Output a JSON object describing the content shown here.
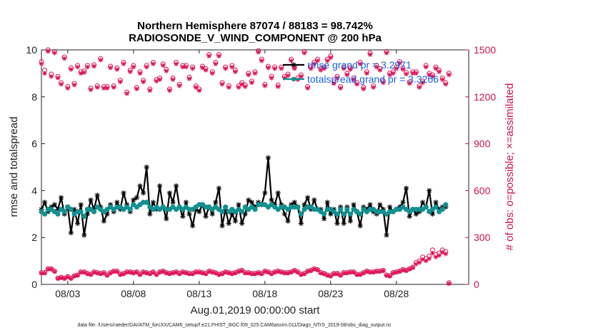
{
  "chart_data": {
    "type": "line",
    "title_line1": "Northern Hemisphere 87074 / 88183 = 98.742%",
    "title_line2": "RADIOSONDE_V_WIND_COMPONENT @ 200 hPa",
    "xlabel": "Aug.01,2019 00:00:00 start",
    "ylabel": "rmse and totalspread",
    "ylabel_right": "# of obs: o=possible; ×=assimilated",
    "footnote": "data file: /Users/raeder/DAI/ATM_forcXX/CAM6_setup/f.e21.FHIST_BGC.f09_025.CAM6assim.011/Diags_NTrS_2019-08/obs_diag_output.nc",
    "xlim": [
      1,
      33.5
    ],
    "ylim": [
      0,
      10
    ],
    "ylim_right": [
      0,
      1500
    ],
    "x_ticks": [
      {
        "x": 3,
        "label": "08/03"
      },
      {
        "x": 8,
        "label": "08/08"
      },
      {
        "x": 13,
        "label": "08/13"
      },
      {
        "x": 18,
        "label": "08/18"
      },
      {
        "x": 23,
        "label": "08/23"
      },
      {
        "x": 28,
        "label": "08/28"
      }
    ],
    "y_ticks": [
      0,
      2,
      4,
      6,
      8,
      10
    ],
    "y_ticks_right": [
      0,
      300,
      600,
      900,
      1200,
      1500
    ],
    "x_start": 1,
    "x_step": 0.25,
    "colors": {
      "rmse": "#000000",
      "spread": "#139090",
      "obs": "#dd1155",
      "legend_text": "#1a5fe0",
      "right_axis": "#cc1155"
    },
    "series": [
      {
        "name": "rmse grand pr = 3.2971",
        "axis": "left",
        "values": [
          3.2,
          3.5,
          3.1,
          3.3,
          3.4,
          3.2,
          3.7,
          3.0,
          3.3,
          2.2,
          3.2,
          2.6,
          3.4,
          2.1,
          3.0,
          3.6,
          3.2,
          3.8,
          3.3,
          2.7,
          3.0,
          3.4,
          3.1,
          3.5,
          3.2,
          3.9,
          3.4,
          3.1,
          3.6,
          3.7,
          4.2,
          3.9,
          5.0,
          3.0,
          3.5,
          3.2,
          4.2,
          3.3,
          2.8,
          3.9,
          3.5,
          4.2,
          3.3,
          2.9,
          3.5,
          3.0,
          2.5,
          3.2,
          3.1,
          3.4,
          2.9,
          3.3,
          3.0,
          3.5,
          4.1,
          2.5,
          3.2,
          2.6,
          3.0,
          2.7,
          3.4,
          2.6,
          3.0,
          3.6,
          3.5,
          3.3,
          3.5,
          3.4,
          3.9,
          5.4,
          3.6,
          3.4,
          3.9,
          3.4,
          3.0,
          2.7,
          3.4,
          3.5,
          3.3,
          2.6,
          3.4,
          3.7,
          3.2,
          3.6,
          3.2,
          3.2,
          2.8,
          3.5,
          3.0,
          3.2,
          2.6,
          3.3,
          2.6,
          3.3,
          2.7,
          3.4,
          3.1,
          2.5,
          3.3,
          3.2,
          3.4,
          3.1,
          3.0,
          3.4,
          3.2,
          2.1,
          3.3,
          3.1,
          3.2,
          3.3,
          3.5,
          4.1,
          2.9,
          3.2,
          3.0,
          3.1,
          3.5,
          3.3,
          4.0,
          3.0,
          3.5,
          3.2,
          3.3,
          3.3
        ],
        "style": "line-star"
      },
      {
        "name": "totalspread grand pr = 3.3266",
        "axis": "left",
        "values": [
          3.1,
          3.0,
          3.2,
          3.2,
          3.1,
          3.0,
          3.2,
          3.1,
          3.3,
          3.2,
          3.0,
          3.1,
          3.1,
          2.9,
          3.2,
          3.2,
          3.1,
          3.3,
          3.2,
          3.1,
          3.2,
          3.3,
          3.2,
          3.3,
          3.3,
          3.2,
          3.3,
          3.2,
          3.4,
          3.3,
          3.4,
          3.5,
          3.5,
          3.3,
          3.2,
          3.3,
          3.2,
          3.3,
          3.2,
          3.2,
          3.3,
          3.2,
          3.3,
          3.2,
          3.3,
          3.2,
          3.2,
          3.3,
          3.4,
          3.4,
          3.3,
          3.3,
          3.2,
          3.3,
          3.2,
          3.1,
          3.3,
          3.1,
          3.2,
          3.1,
          3.2,
          3.1,
          3.3,
          3.2,
          3.3,
          3.2,
          3.4,
          3.4,
          3.4,
          3.3,
          3.4,
          3.3,
          3.2,
          3.3,
          3.3,
          3.2,
          3.3,
          3.3,
          3.3,
          3.0,
          3.2,
          3.3,
          3.3,
          3.2,
          3.2,
          3.1,
          3.0,
          3.2,
          3.2,
          3.1,
          3.0,
          3.2,
          3.0,
          3.2,
          3.0,
          3.2,
          3.1,
          3.0,
          3.2,
          3.1,
          3.2,
          3.2,
          3.1,
          3.1,
          3.1,
          3.0,
          3.1,
          3.1,
          3.2,
          3.2,
          3.3,
          3.2,
          3.1,
          3.2,
          3.2,
          3.2,
          3.2,
          3.3,
          3.1,
          3.2,
          3.3,
          3.1,
          3.2,
          3.4
        ],
        "style": "line-circle"
      },
      {
        "name": "possible",
        "axis": "right",
        "values": [
          1425,
          1370,
          1500,
          1345,
          1490,
          1330,
          1290,
          1455,
          1265,
          1385,
          1285,
          1400,
          1360,
          1365,
          1400,
          1255,
          1405,
          1270,
          1445,
          1265,
          1265,
          1395,
          1270,
          1385,
          1305,
          1420,
          1230,
          1370,
          1400,
          1260,
          1360,
          1305,
          1400,
          1250,
          1420,
          1310,
          1320,
          1410,
          1375,
          1250,
          1320,
          1420,
          1280,
          1400,
          1400,
          1325,
          1390,
          1270,
          1250,
          1395,
          1380,
          1470,
          1360,
          1420,
          1470,
          1290,
          1390,
          1270,
          1400,
          1370,
          1270,
          1290,
          1275,
          1350,
          1300,
          1360,
          1495,
          1440,
          1280,
          1395,
          1330,
          1390,
          1275,
          1390,
          1330,
          1345,
          1440,
          1390,
          1320,
          1340,
          1490,
          1265,
          1390,
          1420,
          1440,
          1380,
          1390,
          1440,
          1460,
          1295,
          1330,
          1265,
          1390,
          1350,
          1385,
          1320,
          1290,
          1420,
          1260,
          1360,
          1480,
          1270,
          1400,
          1380,
          1300,
          1490,
          1350,
          1360,
          1390,
          1425,
          1385,
          1355,
          1295,
          1360,
          1360,
          1270,
          1300,
          1400,
          1350,
          1340,
          1390,
          1370,
          1320,
          1290,
          1350
        ],
        "style": "circle"
      },
      {
        "name": "assimilated",
        "axis": "right",
        "values": [
          1410,
          1350,
          1490,
          1330,
          1480,
          1320,
          1280,
          1445,
          1255,
          1375,
          1275,
          1390,
          1350,
          1355,
          1390,
          1245,
          1395,
          1260,
          1435,
          1255,
          1255,
          1385,
          1260,
          1375,
          1295,
          1410,
          1220,
          1360,
          1390,
          1250,
          1350,
          1295,
          1390,
          1240,
          1410,
          1300,
          1310,
          1400,
          1365,
          1240,
          1310,
          1410,
          1270,
          1390,
          1390,
          1315,
          1380,
          1260,
          1240,
          1385,
          1370,
          1460,
          1350,
          1410,
          1460,
          1280,
          1380,
          1260,
          1390,
          1360,
          1260,
          1280,
          1265,
          1340,
          1290,
          1350,
          1485,
          1430,
          1270,
          1385,
          1320,
          1380,
          1265,
          1380,
          1320,
          1335,
          1430,
          1380,
          1310,
          1330,
          1480,
          1255,
          1380,
          1410,
          1430,
          1370,
          1380,
          1430,
          1450,
          1285,
          1320,
          1255,
          1380,
          1340,
          1375,
          1310,
          1280,
          1410,
          1250,
          1350,
          1470,
          1260,
          1390,
          1370,
          1290,
          1480,
          1340,
          1350,
          1380,
          1415,
          1375,
          1345,
          1285,
          1350,
          1350,
          1260,
          1290,
          1390,
          1340,
          1330,
          1380,
          1360,
          1310,
          1280,
          1340
        ],
        "style": "star"
      },
      {
        "name": "possible_low",
        "axis": "right",
        "values": [
          75,
          75,
          100,
          100,
          85,
          40,
          45,
          40,
          50,
          40,
          55,
          60,
          80,
          80,
          70,
          65,
          80,
          75,
          70,
          75,
          60,
          75,
          85,
          85,
          65,
          70,
          80,
          80,
          75,
          80,
          65,
          80,
          75,
          70,
          80,
          65,
          80,
          85,
          75,
          70,
          75,
          80,
          70,
          80,
          75,
          70,
          70,
          80,
          80,
          75,
          70,
          85,
          80,
          75,
          65,
          70,
          80,
          75,
          70,
          75,
          85,
          90,
          75,
          75,
          70,
          70,
          75,
          70,
          85,
          80,
          70,
          80,
          85,
          80,
          75,
          75,
          80,
          90,
          80,
          65,
          70,
          85,
          90,
          100,
          95,
          75,
          70,
          60,
          55,
          70,
          70,
          60,
          75,
          75,
          80,
          80,
          65,
          65,
          75,
          85,
          80,
          80,
          85,
          85,
          90,
          60,
          55,
          75,
          80,
          85,
          95,
          90,
          100,
          110,
          140,
          150,
          175,
          165,
          180,
          220,
          190,
          200,
          220,
          210,
          10
        ],
        "style": "circle"
      },
      {
        "name": "assimilated_low",
        "axis": "right",
        "values": [
          72,
          72,
          97,
          97,
          82,
          37,
          42,
          37,
          47,
          37,
          52,
          57,
          77,
          77,
          67,
          62,
          77,
          72,
          67,
          72,
          57,
          72,
          82,
          82,
          62,
          67,
          77,
          77,
          72,
          77,
          62,
          77,
          72,
          67,
          77,
          62,
          77,
          82,
          72,
          67,
          72,
          77,
          67,
          77,
          72,
          67,
          67,
          77,
          77,
          72,
          67,
          82,
          77,
          72,
          62,
          67,
          77,
          72,
          67,
          72,
          82,
          87,
          72,
          72,
          67,
          67,
          72,
          67,
          82,
          77,
          67,
          77,
          82,
          77,
          72,
          72,
          77,
          87,
          77,
          62,
          67,
          82,
          87,
          97,
          92,
          72,
          67,
          57,
          52,
          67,
          67,
          57,
          72,
          72,
          77,
          77,
          62,
          62,
          72,
          82,
          77,
          77,
          82,
          82,
          87,
          57,
          52,
          72,
          77,
          82,
          92,
          87,
          97,
          107,
          130,
          140,
          160,
          150,
          165,
          200,
          175,
          185,
          205,
          195,
          5
        ],
        "style": "star"
      }
    ],
    "legend": [
      {
        "label": "rmse grand pr = 3.2971",
        "series": "rmse"
      },
      {
        "label": "totalspread grand pr = 3.3266",
        "series": "spread"
      }
    ]
  }
}
